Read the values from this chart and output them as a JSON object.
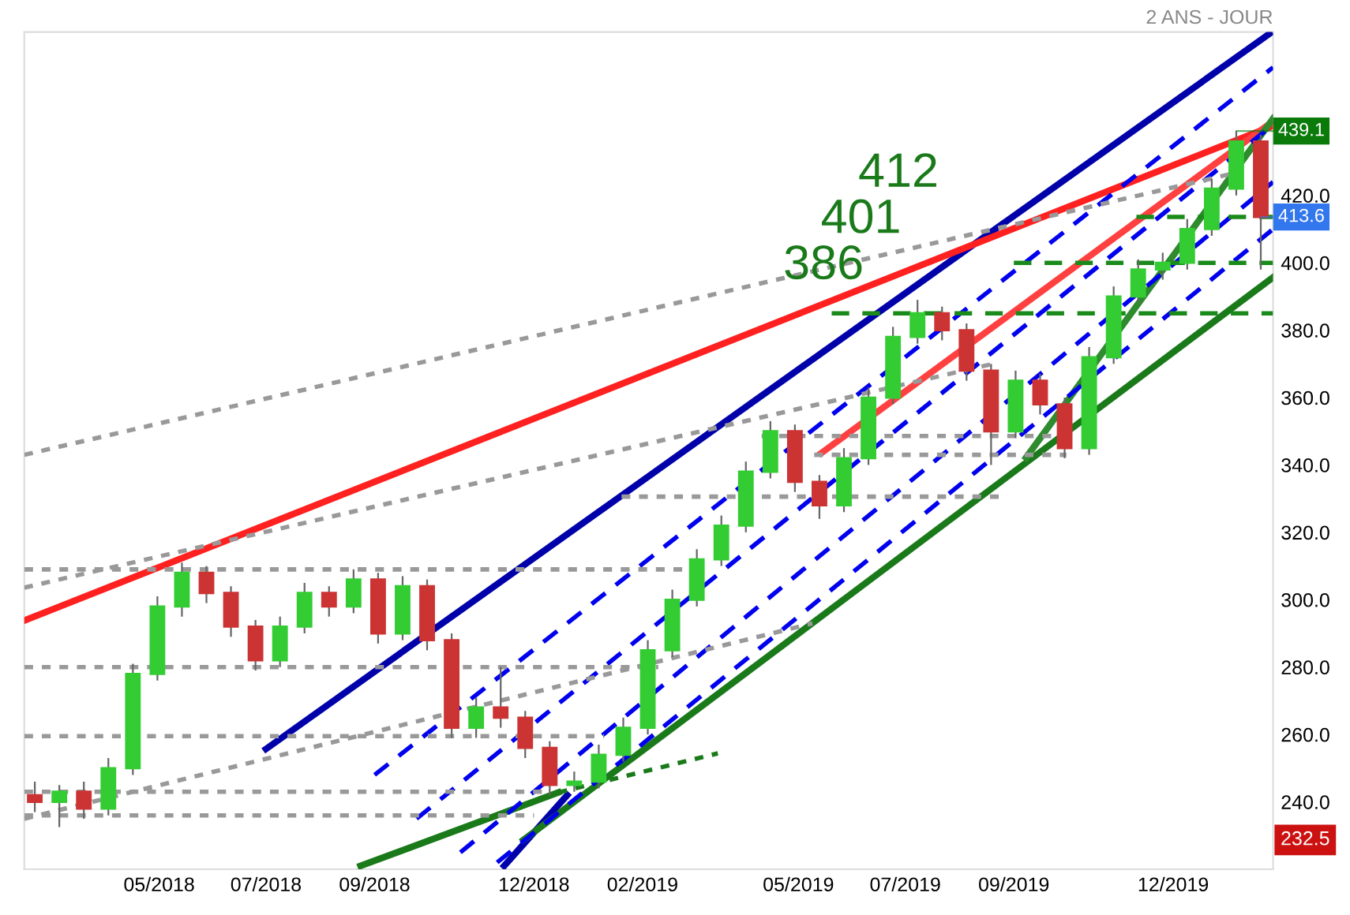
{
  "chart_data": {
    "type": "candlestick",
    "subtitle": "2 ANS - JOUR",
    "x": [
      "2018-02-19",
      "2018-03-05",
      "2018-03-19",
      "2018-04-02",
      "2018-04-16",
      "2018-04-30",
      "2018-05-14",
      "2018-05-28",
      "2018-06-11",
      "2018-06-25",
      "2018-07-09",
      "2018-07-23",
      "2018-08-06",
      "2018-08-20",
      "2018-09-03",
      "2018-09-17",
      "2018-10-01",
      "2018-10-15",
      "2018-10-29",
      "2018-11-12",
      "2018-11-26",
      "2018-12-10",
      "2018-12-24",
      "2019-01-07",
      "2019-01-21",
      "2019-02-04",
      "2019-02-18",
      "2019-03-04",
      "2019-03-18",
      "2019-04-01",
      "2019-04-15",
      "2019-04-29",
      "2019-05-13",
      "2019-05-27",
      "2019-06-10",
      "2019-06-24",
      "2019-07-08",
      "2019-07-22",
      "2019-08-05",
      "2019-08-19",
      "2019-09-02",
      "2019-09-16",
      "2019-09-30",
      "2019-10-14",
      "2019-10-28",
      "2019-11-11",
      "2019-11-25",
      "2019-12-09",
      "2019-12-23",
      "2020-01-06",
      "2020-01-20"
    ],
    "ohlc": [
      [
        242,
        246,
        237,
        240
      ],
      [
        240,
        245,
        232.5,
        243
      ],
      [
        243,
        246,
        235,
        238
      ],
      [
        238,
        253,
        236,
        250
      ],
      [
        250,
        281,
        248,
        278
      ],
      [
        278,
        301,
        276,
        298
      ],
      [
        298,
        311,
        295,
        308
      ],
      [
        308,
        310,
        299,
        302
      ],
      [
        302,
        304,
        289,
        292
      ],
      [
        292,
        294,
        279,
        282
      ],
      [
        282,
        295,
        280,
        292
      ],
      [
        292,
        305,
        290,
        302
      ],
      [
        302,
        304,
        295,
        298
      ],
      [
        298,
        309,
        296,
        306
      ],
      [
        306,
        308,
        287,
        290
      ],
      [
        290,
        307,
        288,
        304
      ],
      [
        304,
        306,
        285,
        288
      ],
      [
        288,
        290,
        259,
        262
      ],
      [
        262,
        271,
        259,
        268
      ],
      [
        268,
        280,
        262,
        265
      ],
      [
        265,
        267,
        253,
        256
      ],
      [
        256,
        258,
        242,
        245
      ],
      [
        245,
        249,
        243,
        246
      ],
      [
        246,
        257,
        244,
        254
      ],
      [
        254,
        265,
        252,
        262
      ],
      [
        262,
        288,
        260,
        285
      ],
      [
        285,
        303,
        283,
        300
      ],
      [
        300,
        315,
        298,
        312
      ],
      [
        312,
        325,
        310,
        322
      ],
      [
        322,
        341,
        320,
        338
      ],
      [
        338,
        353,
        336,
        350
      ],
      [
        350,
        352,
        332,
        335
      ],
      [
        335,
        337,
        324,
        328
      ],
      [
        328,
        345,
        326,
        342
      ],
      [
        342,
        363,
        340,
        360
      ],
      [
        360,
        381,
        358,
        378
      ],
      [
        378,
        389,
        376,
        385
      ],
      [
        385,
        387,
        377,
        380
      ],
      [
        380,
        382,
        365,
        368
      ],
      [
        368,
        370,
        340,
        350
      ],
      [
        350,
        368,
        348,
        365
      ],
      [
        365,
        367,
        355,
        358
      ],
      [
        358,
        360,
        342,
        345
      ],
      [
        345,
        375,
        343,
        372
      ],
      [
        372,
        393,
        370,
        390
      ],
      [
        390,
        401,
        388,
        398
      ],
      [
        398,
        403,
        395,
        400
      ],
      [
        400,
        413,
        398,
        410
      ],
      [
        410,
        425,
        408,
        422
      ],
      [
        422,
        439.1,
        420,
        436
      ],
      [
        436,
        438,
        398,
        413.6
      ]
    ],
    "series": [
      {
        "type": "line",
        "color": "#0000aa",
        "line_style": "solid",
        "x": [
          "2018-07-01",
          "2020-01-25"
        ],
        "values": [
          255.7,
          468
        ]
      },
      {
        "type": "line",
        "color": "#0000aa",
        "line_style": "solid",
        "x": [
          "2018-11-14",
          "2018-12-20"
        ],
        "values": [
          221,
          242
        ]
      },
      {
        "type": "line",
        "color": "#1a7a1a",
        "line_style": "solid",
        "x": [
          "2018-11-25",
          "2020-01-27"
        ],
        "values": [
          228.7,
          395.7
        ]
      },
      {
        "type": "line",
        "color": "#1a7a1a",
        "line_style": "solid",
        "x": [
          "2018-08-24",
          "2018-12-15"
        ],
        "values": [
          221,
          242.8
        ]
      },
      {
        "type": "line",
        "color": "#1a7a1a",
        "line_style": "dotted",
        "x": [
          "2018-12-15",
          "2019-03-16"
        ],
        "values": [
          242.8,
          254.4
        ]
      },
      {
        "type": "line",
        "color": "#ff2020",
        "line_style": "solid",
        "x": [
          "2018-02-13",
          "2020-01-27"
        ],
        "values": [
          293.8,
          440.7
        ]
      },
      {
        "type": "line",
        "color": "#ff4040",
        "line_style": "solid",
        "x": [
          "2019-05-14",
          "2020-01-27"
        ],
        "values": [
          343.5,
          442
        ]
      },
      {
        "type": "line",
        "color": "#2e8b2e",
        "line_style": "solid",
        "x": [
          "2019-09-08",
          "2020-01-27"
        ],
        "values": [
          342.2,
          442.8
        ]
      },
      {
        "type": "line",
        "color": "#0000ee",
        "line_style": "dashed",
        "x": [
          "2018-09-01",
          "2020-01-27"
        ],
        "values": [
          248,
          458
        ]
      },
      {
        "type": "line",
        "color": "#0000ee",
        "line_style": "dashed",
        "x": [
          "2018-09-25",
          "2020-01-27"
        ],
        "values": [
          235,
          441
        ]
      },
      {
        "type": "line",
        "color": "#0000ee",
        "line_style": "dashed",
        "x": [
          "2018-10-20",
          "2020-01-27"
        ],
        "values": [
          225,
          424
        ]
      },
      {
        "type": "line",
        "color": "#0000ee",
        "line_style": "dashed",
        "x": [
          "2018-11-10",
          "2020-01-27"
        ],
        "values": [
          222,
          410
        ]
      },
      {
        "type": "line",
        "color": "#999999",
        "line_style": "dotted",
        "x": [
          "2018-02-13",
          "2020-01-04"
        ],
        "values": [
          343,
          426.5
        ]
      },
      {
        "type": "line",
        "color": "#999999",
        "line_style": "dotted",
        "x": [
          "2018-02-13",
          "2019-08-20"
        ],
        "values": [
          303.6,
          370
        ]
      },
      {
        "type": "line",
        "color": "#999999",
        "line_style": "dotted",
        "x": [
          "2018-02-13",
          "2019-05-09"
        ],
        "values": [
          235,
          293
        ]
      },
      {
        "type": "line",
        "color": "#999999",
        "line_style": "dotted",
        "x": [
          "2018-02-13",
          "2019-02-25"
        ],
        "values": [
          309,
          309
        ]
      },
      {
        "type": "line",
        "color": "#999999",
        "line_style": "dotted",
        "x": [
          "2018-02-13",
          "2019-02-10"
        ],
        "values": [
          280,
          280
        ]
      },
      {
        "type": "line",
        "color": "#999999",
        "line_style": "dotted",
        "x": [
          "2018-02-13",
          "2019-01-10"
        ],
        "values": [
          259.5,
          259.5
        ]
      },
      {
        "type": "line",
        "color": "#999999",
        "line_style": "dotted",
        "x": [
          "2018-02-13",
          "2018-12-10"
        ],
        "values": [
          243,
          243
        ]
      },
      {
        "type": "line",
        "color": "#999999",
        "line_style": "dotted",
        "x": [
          "2018-02-13",
          "2018-12-01"
        ],
        "values": [
          236,
          236
        ]
      },
      {
        "type": "line",
        "color": "#999999",
        "line_style": "dotted",
        "x": [
          "2019-01-20",
          "2019-08-25"
        ],
        "values": [
          330.6,
          330.6
        ]
      },
      {
        "type": "line",
        "color": "#999999",
        "line_style": "dotted",
        "x": [
          "2019-04-10",
          "2019-09-25"
        ],
        "values": [
          348.6,
          348.6
        ]
      },
      {
        "type": "line",
        "color": "#999999",
        "line_style": "dotted",
        "x": [
          "2019-05-10",
          "2019-10-01"
        ],
        "values": [
          343,
          343
        ]
      },
      {
        "type": "line",
        "color": "#1a8a1a",
        "line_style": "dashed",
        "x": [
          "2019-05-20",
          "2020-01-27"
        ],
        "values": [
          385,
          385
        ]
      },
      {
        "type": "line",
        "color": "#1a8a1a",
        "line_style": "dashed",
        "x": [
          "2019-09-01",
          "2020-01-27"
        ],
        "values": [
          400,
          400
        ]
      },
      {
        "type": "line",
        "color": "#1a8a1a",
        "line_style": "dashed",
        "x": [
          "2019-11-10",
          "2020-01-27"
        ],
        "values": [
          413.6,
          413.6
        ]
      }
    ],
    "annotations": [
      "386",
      "401",
      "412",
      {
        "text": "439.1",
        "x": "2020-01-06",
        "y": 439.1
      },
      {
        "text": "413.6",
        "x": "2020-01-20",
        "y": 413.6
      },
      "232.5"
    ],
    "xlim": [
      "2018-02-13",
      "2020-01-27"
    ],
    "ylim": [
      220,
      468.5
    ],
    "xticks": [
      {
        "value": "2018-05-01",
        "label": "05/2018"
      },
      {
        "value": "2018-07-01",
        "label": "07/2018"
      },
      {
        "value": "2018-09-01",
        "label": "09/2018"
      },
      {
        "value": "2018-12-01",
        "label": "12/2018"
      },
      {
        "value": "2019-02-01",
        "label": "02/2019"
      },
      {
        "value": "2019-05-01",
        "label": "05/2019"
      },
      {
        "value": "2019-07-01",
        "label": "07/2019"
      },
      {
        "value": "2019-09-01",
        "label": "09/2019"
      },
      {
        "value": "2019-12-01",
        "label": "12/2019"
      }
    ],
    "yticks": [
      {
        "value": 240,
        "label": "240.0"
      },
      {
        "value": 260,
        "label": "260.0"
      },
      {
        "value": 280,
        "label": "280.0"
      },
      {
        "value": 300,
        "label": "300.0"
      },
      {
        "value": 320,
        "label": "320.0"
      },
      {
        "value": 340,
        "label": "340.0"
      },
      {
        "value": 360,
        "label": "360.0"
      },
      {
        "value": 380,
        "label": "380.0"
      },
      {
        "value": 400,
        "label": "400.0"
      },
      {
        "value": 420,
        "label": "420.0"
      }
    ],
    "grid": false
  }
}
